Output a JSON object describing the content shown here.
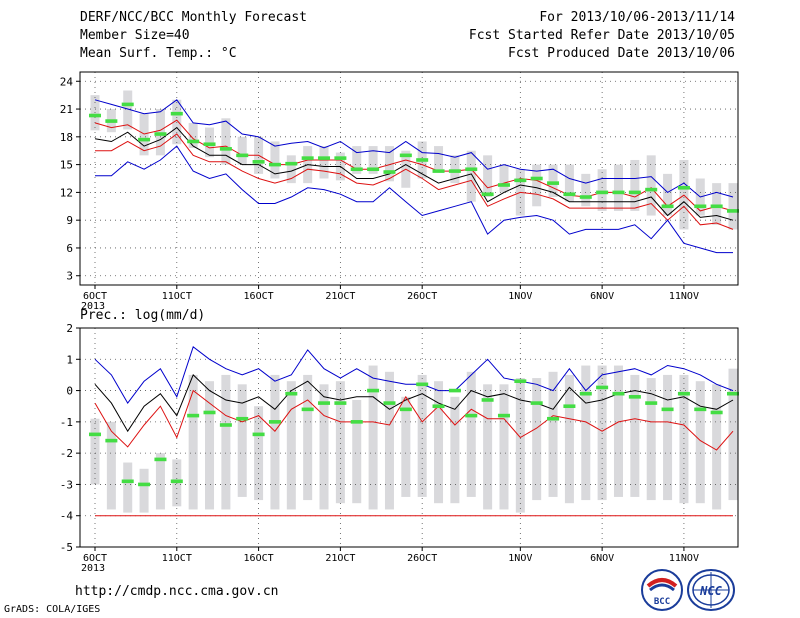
{
  "header": {
    "title": "DERF/NCC/BCC Monthly Forecast",
    "member_size": "Member Size=40",
    "variable": "Mean Surf. Temp.: °C",
    "forecast_period": "For 2013/10/06-2013/11/14",
    "fcst_started": "Fcst Started Refer Date 2013/10/05",
    "fcst_produced": "Fcst Produced Date 2013/10/06"
  },
  "footer": {
    "url": "http://cmdp.ncc.cma.gov.cn",
    "grads_credit": "GrADS: COLA/IGES",
    "logo_left_text": "BCC",
    "logo_right_text": "NCC"
  },
  "colors": {
    "box": "#d9d9dc",
    "median": "#44dd44",
    "mean": "#000000",
    "inner_band": "#dd1111",
    "outer_band": "#0000cc",
    "grid": "#555555"
  },
  "chart_data": [
    {
      "type": "box",
      "title": "",
      "ylabel": "Mean Surf. Temp.: °C",
      "ylim": [
        2,
        25
      ],
      "yticks": [
        3,
        6,
        9,
        12,
        15,
        18,
        21,
        24
      ],
      "grid": true,
      "day_count": 40,
      "x_ticks": [
        {
          "day": 1,
          "label": "6OCT",
          "sublabel": "2013"
        },
        {
          "day": 6,
          "label": "11OCT"
        },
        {
          "day": 11,
          "label": "16OCT"
        },
        {
          "day": 16,
          "label": "21OCT"
        },
        {
          "day": 21,
          "label": "26OCT"
        },
        {
          "day": 27,
          "label": "1NOV"
        },
        {
          "day": 32,
          "label": "6NOV"
        },
        {
          "day": 37,
          "label": "11NOV"
        }
      ],
      "boxes": {
        "low": [
          18.7,
          18.5,
          18.8,
          16.0,
          16.0,
          17.2,
          16.8,
          15.8,
          15.0,
          15.0,
          14.0,
          13.5,
          13.0,
          13.0,
          13.5,
          13.3,
          14.0,
          14.0,
          13.2,
          12.5,
          13.5,
          14.5,
          13.0,
          11.0,
          11.5,
          12.0,
          9.5,
          10.5,
          11.5,
          11.0,
          10.5,
          10.0,
          10.0,
          10.0,
          9.5,
          9.5,
          8.0,
          9.5,
          8.5,
          8.0
        ],
        "high": [
          22.5,
          21.0,
          23.0,
          20.5,
          21.0,
          22.0,
          19.5,
          19.0,
          20.0,
          18.0,
          18.0,
          17.5,
          16.0,
          17.0,
          17.0,
          16.3,
          17.0,
          17.0,
          17.0,
          16.5,
          17.5,
          17.0,
          16.0,
          16.5,
          16.0,
          15.0,
          14.5,
          15.0,
          15.0,
          15.0,
          14.0,
          14.5,
          15.0,
          15.5,
          16.0,
          14.0,
          15.5,
          13.5,
          13.0,
          13.0
        ],
        "median": [
          20.3,
          19.7,
          21.5,
          17.7,
          18.3,
          20.5,
          17.5,
          17.2,
          16.7,
          16.0,
          15.3,
          15.0,
          15.1,
          15.7,
          15.7,
          15.7,
          14.5,
          14.5,
          14.2,
          16.0,
          15.5,
          14.3,
          14.3,
          14.5,
          11.8,
          12.8,
          13.3,
          13.5,
          13.0,
          11.8,
          11.5,
          12.0,
          12.0,
          12.0,
          12.3,
          10.5,
          12.5,
          10.5,
          10.5,
          10.0
        ]
      },
      "series": [
        {
          "values": [
            22.0,
            21.5,
            21.0,
            20.5,
            20.7,
            22.0,
            19.5,
            19.3,
            19.7,
            18.3,
            18.0,
            17.0,
            17.3,
            17.5,
            16.8,
            17.5,
            16.3,
            16.5,
            16.3,
            17.5,
            16.3,
            16.2,
            15.8,
            16.3,
            14.5,
            15.0,
            14.5,
            14.3,
            14.5,
            13.5,
            13.0,
            13.5,
            13.5,
            13.5,
            13.7,
            12.0,
            13.0,
            11.5,
            12.0,
            11.5
          ]
        },
        {
          "values": [
            19.5,
            19.0,
            19.3,
            18.3,
            18.7,
            19.8,
            17.8,
            16.8,
            17.0,
            16.0,
            16.0,
            15.0,
            15.0,
            15.5,
            15.5,
            15.5,
            14.5,
            14.5,
            15.0,
            15.5,
            15.0,
            14.3,
            14.3,
            14.5,
            12.5,
            13.0,
            13.5,
            13.3,
            12.5,
            11.7,
            11.5,
            12.0,
            12.0,
            11.5,
            12.5,
            10.5,
            11.7,
            10.0,
            10.5,
            10.0
          ]
        },
        {
          "values": [
            17.8,
            17.5,
            18.5,
            17.0,
            17.7,
            19.0,
            17.0,
            16.0,
            16.0,
            15.0,
            15.0,
            14.0,
            14.3,
            15.0,
            14.8,
            14.8,
            13.5,
            13.5,
            14.0,
            15.0,
            14.0,
            13.0,
            13.5,
            14.0,
            11.0,
            12.0,
            12.8,
            12.5,
            12.0,
            11.0,
            11.0,
            11.0,
            11.0,
            11.0,
            11.5,
            9.5,
            11.0,
            9.3,
            9.5,
            9.0
          ]
        },
        {
          "values": [
            16.5,
            16.5,
            17.5,
            16.5,
            17.0,
            18.3,
            16.0,
            15.3,
            15.3,
            14.3,
            13.5,
            13.0,
            13.5,
            14.5,
            14.3,
            14.0,
            13.0,
            12.8,
            13.5,
            14.5,
            13.5,
            12.3,
            12.8,
            13.3,
            10.5,
            11.3,
            12.0,
            11.8,
            11.3,
            10.3,
            10.3,
            10.3,
            10.3,
            10.3,
            10.8,
            9.0,
            10.5,
            8.5,
            8.7,
            8.0
          ]
        },
        {
          "values": [
            13.8,
            13.8,
            15.3,
            14.5,
            15.5,
            17.0,
            14.3,
            13.5,
            14.0,
            12.3,
            10.8,
            10.8,
            11.5,
            12.5,
            12.3,
            11.8,
            11.0,
            11.0,
            12.5,
            11.0,
            9.5,
            10.0,
            10.5,
            11.0,
            7.5,
            9.0,
            9.3,
            9.5,
            9.0,
            7.5,
            8.0,
            8.0,
            8.0,
            8.5,
            7.0,
            9.0,
            6.5,
            6.0,
            5.5,
            5.5
          ]
        }
      ]
    },
    {
      "type": "box",
      "title": "",
      "ylabel": "Prec.: log(mm/d)",
      "ylim": [
        -5,
        2
      ],
      "yticks": [
        -5,
        -4,
        -3,
        -2,
        -1,
        0,
        1,
        2
      ],
      "grid": true,
      "day_count": 40,
      "x_ticks": [
        {
          "day": 1,
          "label": "6OCT",
          "sublabel": "2013"
        },
        {
          "day": 6,
          "label": "11OCT"
        },
        {
          "day": 11,
          "label": "16OCT"
        },
        {
          "day": 16,
          "label": "21OCT"
        },
        {
          "day": 21,
          "label": "26OCT"
        },
        {
          "day": 27,
          "label": "1NOV"
        },
        {
          "day": 32,
          "label": "6NOV"
        },
        {
          "day": 37,
          "label": "11NOV"
        }
      ],
      "boxes": {
        "low": [
          -3.0,
          -3.8,
          -3.9,
          -3.9,
          -3.8,
          -3.7,
          -3.8,
          -3.8,
          -3.8,
          -3.4,
          -3.5,
          -3.8,
          -3.8,
          -3.5,
          -3.8,
          -3.6,
          -3.6,
          -3.8,
          -3.8,
          -3.4,
          -3.4,
          -3.6,
          -3.6,
          -3.4,
          -3.8,
          -3.8,
          -3.9,
          -3.5,
          -3.4,
          -3.6,
          -3.5,
          -3.5,
          -3.4,
          -3.4,
          -3.5,
          -3.5,
          -3.6,
          -3.6,
          -3.8,
          -3.5
        ],
        "high": [
          -0.9,
          -1.0,
          -2.3,
          -2.5,
          -2.0,
          -2.2,
          0.5,
          0.3,
          0.5,
          0.2,
          -0.5,
          0.5,
          0.3,
          0.5,
          0.2,
          0.3,
          -0.3,
          0.8,
          0.6,
          -0.2,
          0.5,
          0.3,
          -0.2,
          0.6,
          0.2,
          0.2,
          0.4,
          0.4,
          0.6,
          0.5,
          0.8,
          0.8,
          0.8,
          0.5,
          0.4,
          0.5,
          0.5,
          0.3,
          0.2,
          0.7
        ],
        "median": [
          -1.4,
          -1.6,
          -2.9,
          -3.0,
          -2.2,
          -2.9,
          -0.8,
          -0.7,
          -1.1,
          -0.9,
          -1.4,
          -1.0,
          -0.1,
          -0.6,
          -0.4,
          -0.4,
          -1.0,
          0.0,
          -0.4,
          -0.6,
          0.2,
          -0.5,
          0.0,
          -0.8,
          -0.3,
          -0.8,
          0.3,
          -0.4,
          -0.9,
          -0.5,
          -0.1,
          0.1,
          -0.1,
          -0.2,
          -0.4,
          -0.6,
          -0.1,
          -0.6,
          -0.7,
          -0.1
        ]
      },
      "series": [
        {
          "values": [
            1.0,
            0.5,
            -0.4,
            0.3,
            0.7,
            -0.2,
            1.4,
            1.0,
            0.7,
            0.5,
            0.7,
            0.3,
            0.5,
            1.3,
            0.7,
            0.4,
            0.7,
            0.4,
            0.3,
            0.2,
            0.2,
            0.0,
            0.0,
            0.5,
            1.0,
            0.4,
            0.3,
            0.2,
            0.0,
            0.7,
            0.0,
            0.5,
            0.6,
            0.7,
            0.5,
            0.8,
            0.7,
            0.5,
            0.2,
            0.0
          ]
        },
        {
          "values": [
            0.2,
            -0.4,
            -1.3,
            -0.5,
            -0.1,
            -0.8,
            0.5,
            0.0,
            -0.3,
            -0.4,
            -0.2,
            -0.6,
            0.0,
            0.3,
            -0.2,
            -0.3,
            -0.2,
            -0.2,
            -0.6,
            -0.3,
            -0.1,
            -0.4,
            -0.6,
            0.0,
            -0.2,
            -0.1,
            -0.3,
            -0.4,
            -0.6,
            0.1,
            -0.4,
            -0.3,
            -0.1,
            0.0,
            -0.1,
            -0.3,
            -0.2,
            -0.5,
            -0.6,
            -0.3
          ]
        },
        {
          "values": [
            -0.4,
            -1.3,
            -1.8,
            -1.1,
            -0.5,
            -1.5,
            0.0,
            -0.4,
            -0.8,
            -1.0,
            -0.8,
            -1.3,
            -0.6,
            -0.3,
            -0.8,
            -1.0,
            -1.0,
            -1.0,
            -1.1,
            -0.2,
            -1.0,
            -0.5,
            -1.1,
            -0.6,
            -0.9,
            -0.9,
            -1.5,
            -1.2,
            -0.8,
            -0.9,
            -1.0,
            -1.3,
            -1.0,
            -0.9,
            -1.0,
            -1.0,
            -1.1,
            -1.6,
            -1.9,
            -1.3
          ]
        },
        {
          "values": [
            -4.0,
            -4.0,
            -4.0,
            -4.0,
            -4.0,
            -4.0,
            -4.0,
            -4.0,
            -4.0,
            -4.0,
            -4.0,
            -4.0,
            -4.0,
            -4.0,
            -4.0,
            -4.0,
            -4.0,
            -4.0,
            -4.0,
            -4.0,
            -4.0,
            -4.0,
            -4.0,
            -4.0,
            -4.0,
            -4.0,
            -4.0,
            -4.0,
            -4.0,
            -4.0,
            -4.0,
            -4.0,
            -4.0,
            -4.0,
            -4.0,
            -4.0,
            -4.0,
            -4.0,
            -4.0,
            -4.0
          ]
        }
      ]
    }
  ]
}
